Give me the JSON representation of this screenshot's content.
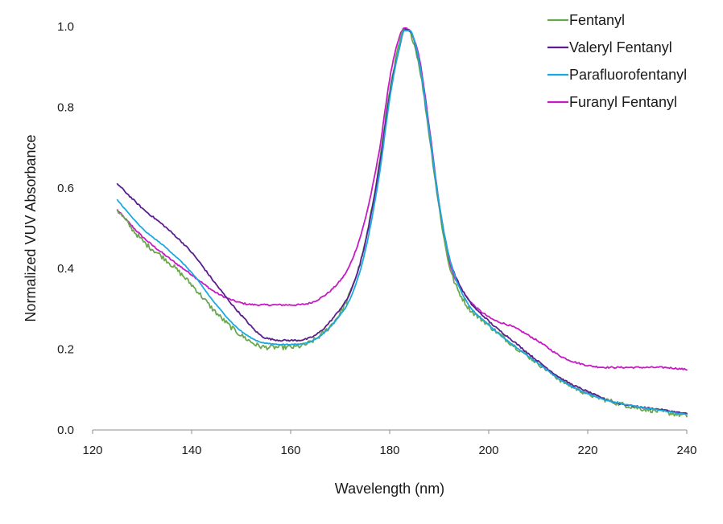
{
  "chart_data": {
    "type": "line",
    "title": "",
    "xlabel": "Wavelength (nm)",
    "ylabel": "Normalized VUV Absorbance",
    "xlim": [
      120,
      240
    ],
    "ylim": [
      0,
      1.0
    ],
    "x_ticks": [
      "120",
      "140",
      "160",
      "180",
      "200",
      "220",
      "240"
    ],
    "y_ticks": [
      "0.0",
      "0.2",
      "0.4",
      "0.6",
      "0.8",
      "1.0"
    ],
    "grid": false,
    "legend_position": "top-right",
    "x": [
      125,
      130,
      135,
      140,
      145,
      150,
      155,
      160,
      165,
      170,
      172,
      175,
      178,
      180,
      182,
      183,
      184,
      186,
      188,
      190,
      192,
      195,
      200,
      205,
      210,
      215,
      220,
      225,
      230,
      235,
      240
    ],
    "series": [
      {
        "name": "Fentanyl",
        "color": "#6aa84f",
        "noise": 0.006,
        "values": [
          0.545,
          0.47,
          0.42,
          0.36,
          0.29,
          0.235,
          0.205,
          0.205,
          0.225,
          0.29,
          0.34,
          0.46,
          0.67,
          0.84,
          0.96,
          0.99,
          0.985,
          0.9,
          0.73,
          0.55,
          0.41,
          0.32,
          0.26,
          0.21,
          0.165,
          0.12,
          0.09,
          0.07,
          0.055,
          0.045,
          0.035
        ]
      },
      {
        "name": "Valeryl Fentanyl",
        "color": "#5b1e8e",
        "noise": 0.002,
        "values": [
          0.61,
          0.55,
          0.5,
          0.44,
          0.36,
          0.285,
          0.228,
          0.222,
          0.235,
          0.3,
          0.34,
          0.46,
          0.66,
          0.83,
          0.95,
          0.993,
          0.99,
          0.91,
          0.74,
          0.56,
          0.43,
          0.34,
          0.27,
          0.22,
          0.17,
          0.125,
          0.095,
          0.07,
          0.058,
          0.05,
          0.04
        ]
      },
      {
        "name": "Parafluorofentanyl",
        "color": "#1ba9e0",
        "noise": 0.001,
        "values": [
          0.57,
          0.5,
          0.45,
          0.39,
          0.31,
          0.245,
          0.215,
          0.212,
          0.225,
          0.285,
          0.325,
          0.44,
          0.64,
          0.82,
          0.95,
          0.99,
          0.99,
          0.91,
          0.74,
          0.56,
          0.43,
          0.33,
          0.26,
          0.21,
          0.165,
          0.12,
          0.09,
          0.07,
          0.058,
          0.048,
          0.038
        ]
      },
      {
        "name": "Furanyl Fentanyl",
        "color": "#c61bc4",
        "noise": 0.002,
        "values": [
          0.545,
          0.48,
          0.43,
          0.385,
          0.34,
          0.315,
          0.31,
          0.31,
          0.32,
          0.37,
          0.41,
          0.52,
          0.7,
          0.87,
          0.975,
          0.996,
          0.99,
          0.92,
          0.75,
          0.56,
          0.42,
          0.34,
          0.28,
          0.255,
          0.22,
          0.18,
          0.16,
          0.155,
          0.155,
          0.155,
          0.15
        ]
      }
    ]
  }
}
